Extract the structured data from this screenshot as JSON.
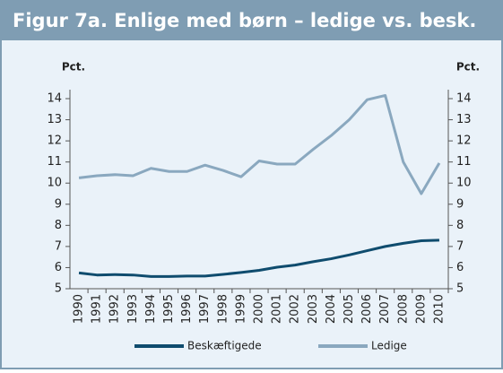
{
  "chart_data": {
    "type": "line",
    "title": "Figur 7a. Enlige med børn – ledige vs. besk.",
    "y_label": "Pct.",
    "y2_label": "Pct.",
    "categories": [
      "1990",
      "1991",
      "1992",
      "1993",
      "1994",
      "1995",
      "1996",
      "1997",
      "1998",
      "1999",
      "2000",
      "2001",
      "2002",
      "2003",
      "2004",
      "2005",
      "2006",
      "2007",
      "2008",
      "2009",
      "2010"
    ],
    "series": [
      {
        "name": "Beskæftigede",
        "color": "#0f4c6e",
        "values": [
          5.75,
          5.65,
          5.67,
          5.65,
          5.58,
          5.58,
          5.6,
          5.6,
          5.68,
          5.77,
          5.87,
          6.02,
          6.12,
          6.28,
          6.42,
          6.6,
          6.8,
          7.0,
          7.15,
          7.27,
          7.3
        ]
      },
      {
        "name": "Ledige",
        "color": "#8aa8bf",
        "values": [
          10.25,
          10.35,
          10.4,
          10.35,
          10.7,
          10.55,
          10.55,
          10.85,
          10.6,
          10.3,
          11.05,
          10.9,
          10.9,
          11.6,
          12.25,
          13.0,
          13.95,
          14.15,
          11.0,
          9.5,
          10.95
        ]
      }
    ],
    "ylim": [
      5,
      14
    ],
    "yticks": [
      5,
      6,
      7,
      8,
      9,
      10,
      11,
      12,
      13,
      14
    ],
    "y2lim": [
      5,
      14
    ],
    "y2ticks": [
      5,
      6,
      7,
      8,
      9,
      10,
      11,
      12,
      13,
      14
    ],
    "legend": "bottom"
  }
}
